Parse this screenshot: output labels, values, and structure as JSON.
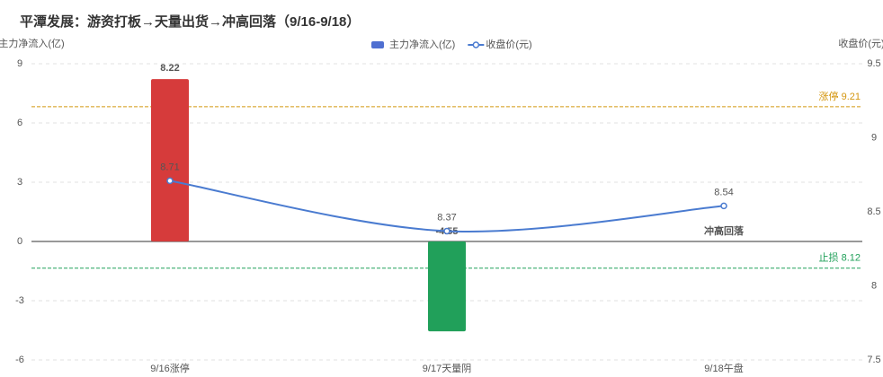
{
  "chart_data": {
    "type": "bar_line",
    "title": "平潭发展：游资打板→天量出货→冲高回落（9/16-9/18）",
    "y_label": "主力净流入(亿)",
    "y2_label": "收盘价(元)",
    "categories": [
      "9/16涨停",
      "9/17天量阴",
      "9/18午盘"
    ],
    "series": [
      {
        "name": "主力净流入(亿)",
        "type": "bar",
        "color": "#4f6fd1",
        "colors": [
          "#d63b3b",
          "#21a05a"
        ],
        "values": [
          8.22,
          -4.55,
          null
        ]
      },
      {
        "name": "收盘价(元)",
        "type": "line",
        "axis": "y2",
        "color": "#4a7bd0",
        "values": [
          8.71,
          8.37,
          8.54
        ]
      }
    ],
    "ylim": [
      -6,
      9
    ],
    "yticks": [
      -6,
      -3,
      0,
      3,
      6,
      9
    ],
    "y2lim": [
      7.5,
      9.5
    ],
    "y2ticks": [
      7.5,
      8,
      8.5,
      9,
      9.5
    ],
    "mark_lines": [
      {
        "name": "涨停",
        "value": 9.21,
        "color": "#d4960f"
      },
      {
        "name": "止损",
        "value": 8.12,
        "color": "#21a05a"
      }
    ],
    "annotation": {
      "text": "冲高回落",
      "category": 2
    },
    "grid": true
  }
}
